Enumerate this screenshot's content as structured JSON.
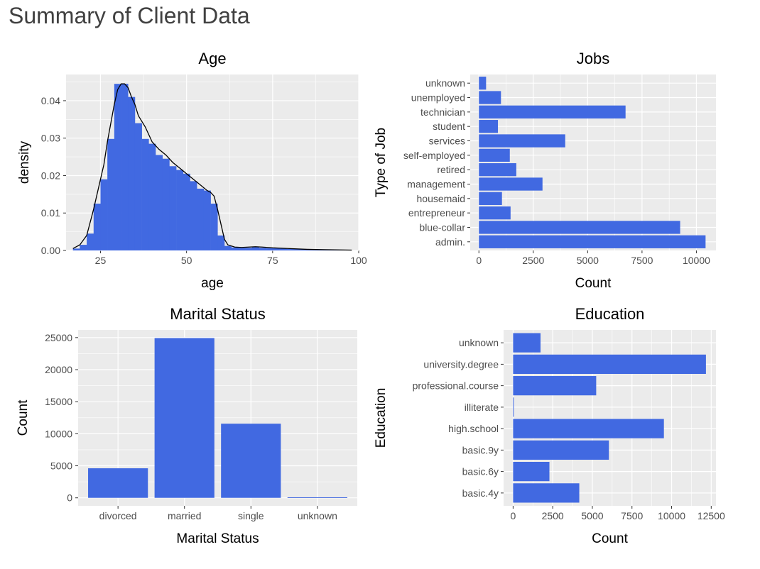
{
  "page": {
    "title": "Summary of Client Data"
  },
  "chart_data": [
    {
      "type": "histogram",
      "title": "Age",
      "xlabel": "age",
      "ylabel": "density",
      "xlim": [
        15,
        100
      ],
      "ylim": [
        0,
        0.047
      ],
      "x_ticks": [
        25,
        50,
        75,
        100
      ],
      "y_ticks": [
        0.0,
        0.01,
        0.02,
        0.03,
        0.04
      ],
      "y_tick_labels": [
        "0.00",
        "0.01",
        "0.02",
        "0.03",
        "0.04"
      ],
      "bins": [
        {
          "x0": 17,
          "x1": 19,
          "y": 0.0005
        },
        {
          "x0": 19,
          "x1": 21,
          "y": 0.0015
        },
        {
          "x0": 21,
          "x1": 23,
          "y": 0.0045
        },
        {
          "x0": 23,
          "x1": 25,
          "y": 0.0125
        },
        {
          "x0": 25,
          "x1": 27,
          "y": 0.019
        },
        {
          "x0": 27,
          "x1": 29,
          "y": 0.0298
        },
        {
          "x0": 29,
          "x1": 31,
          "y": 0.0445
        },
        {
          "x0": 31,
          "x1": 33,
          "y": 0.0445
        },
        {
          "x0": 33,
          "x1": 35,
          "y": 0.041
        },
        {
          "x0": 35,
          "x1": 37,
          "y": 0.034
        },
        {
          "x0": 37,
          "x1": 39,
          "y": 0.0298
        },
        {
          "x0": 39,
          "x1": 41,
          "y": 0.0285
        },
        {
          "x0": 41,
          "x1": 43,
          "y": 0.0255
        },
        {
          "x0": 43,
          "x1": 45,
          "y": 0.0245
        },
        {
          "x0": 45,
          "x1": 47,
          "y": 0.0225
        },
        {
          "x0": 47,
          "x1": 49,
          "y": 0.0215
        },
        {
          "x0": 49,
          "x1": 51,
          "y": 0.0205
        },
        {
          "x0": 51,
          "x1": 53,
          "y": 0.0185
        },
        {
          "x0": 53,
          "x1": 55,
          "y": 0.0165
        },
        {
          "x0": 55,
          "x1": 57,
          "y": 0.016
        },
        {
          "x0": 57,
          "x1": 59,
          "y": 0.0125
        },
        {
          "x0": 59,
          "x1": 61,
          "y": 0.004
        },
        {
          "x0": 61,
          "x1": 63,
          "y": 0.0012
        },
        {
          "x0": 63,
          "x1": 65,
          "y": 0.0008
        },
        {
          "x0": 65,
          "x1": 67,
          "y": 0.0007
        },
        {
          "x0": 67,
          "x1": 69,
          "y": 0.0007
        },
        {
          "x0": 69,
          "x1": 71,
          "y": 0.001
        },
        {
          "x0": 71,
          "x1": 73,
          "y": 0.0007
        },
        {
          "x0": 73,
          "x1": 75,
          "y": 0.0006
        },
        {
          "x0": 75,
          "x1": 77,
          "y": 0.0006
        },
        {
          "x0": 77,
          "x1": 79,
          "y": 0.0005
        },
        {
          "x0": 79,
          "x1": 81,
          "y": 0.0004
        },
        {
          "x0": 81,
          "x1": 83,
          "y": 0.0004
        },
        {
          "x0": 83,
          "x1": 85,
          "y": 0.0003
        },
        {
          "x0": 85,
          "x1": 87,
          "y": 0.0002
        },
        {
          "x0": 87,
          "x1": 89,
          "y": 0.0002
        },
        {
          "x0": 89,
          "x1": 91,
          "y": 0.0001
        },
        {
          "x0": 91,
          "x1": 93,
          "y": 0.0001
        },
        {
          "x0": 93,
          "x1": 95,
          "y": 0.0001
        },
        {
          "x0": 95,
          "x1": 97,
          "y": 0.0001
        }
      ],
      "density_curve": {
        "x": [
          17,
          19,
          21,
          23,
          25,
          26,
          27,
          28,
          29,
          30,
          31,
          32,
          33,
          34,
          35,
          36,
          38,
          40,
          42,
          44,
          46,
          48,
          50,
          52,
          54,
          56,
          57,
          58,
          59,
          60,
          61,
          62,
          64,
          66,
          68,
          70,
          72,
          75,
          80,
          85,
          90,
          98
        ],
        "y": [
          0.0005,
          0.0015,
          0.004,
          0.011,
          0.019,
          0.023,
          0.029,
          0.034,
          0.039,
          0.043,
          0.0445,
          0.0445,
          0.0435,
          0.041,
          0.039,
          0.036,
          0.033,
          0.029,
          0.027,
          0.0255,
          0.0235,
          0.022,
          0.0205,
          0.019,
          0.0175,
          0.016,
          0.0155,
          0.0145,
          0.011,
          0.007,
          0.003,
          0.0015,
          0.0009,
          0.0008,
          0.0009,
          0.001,
          0.0009,
          0.0007,
          0.0005,
          0.0003,
          0.0002,
          0.0001
        ]
      }
    },
    {
      "type": "bar",
      "orientation": "horizontal",
      "title": "Jobs",
      "xlabel": "Count",
      "ylabel": "Type of Job",
      "categories": [
        "admin.",
        "blue-collar",
        "entrepreneur",
        "housemaid",
        "management",
        "retired",
        "self-employed",
        "services",
        "student",
        "technician",
        "unemployed",
        "unknown"
      ],
      "values": [
        10422,
        9254,
        1456,
        1060,
        2924,
        1720,
        1421,
        3969,
        875,
        6743,
        1014,
        330
      ],
      "xlim": [
        -400,
        10900
      ],
      "x_ticks": [
        0,
        2500,
        5000,
        7500,
        10000
      ]
    },
    {
      "type": "bar",
      "orientation": "vertical",
      "title": "Marital Status",
      "xlabel": "Marital Status",
      "ylabel": "Count",
      "categories": [
        "divorced",
        "married",
        "single",
        "unknown"
      ],
      "values": [
        4612,
        24928,
        11568,
        80
      ],
      "ylim": [
        -1250,
        26200
      ],
      "y_ticks": [
        0,
        5000,
        10000,
        15000,
        20000,
        25000
      ]
    },
    {
      "type": "bar",
      "orientation": "horizontal",
      "title": "Education",
      "xlabel": "Count",
      "ylabel": "Education",
      "categories": [
        "basic.4y",
        "basic.6y",
        "basic.9y",
        "high.school",
        "illiterate",
        "professional.course",
        "university.degree",
        "unknown"
      ],
      "values": [
        4176,
        2292,
        6045,
        9515,
        18,
        5243,
        12168,
        1731
      ],
      "xlim": [
        -600,
        12800
      ],
      "x_ticks": [
        0,
        2500,
        5000,
        7500,
        10000,
        12500
      ]
    }
  ],
  "colors": {
    "bar": "#4169e1",
    "panel_bg": "#ebebeb",
    "grid": "#ffffff",
    "tick_text": "#4d4d4d",
    "axis_title": "#000000",
    "curve": "#000000"
  }
}
